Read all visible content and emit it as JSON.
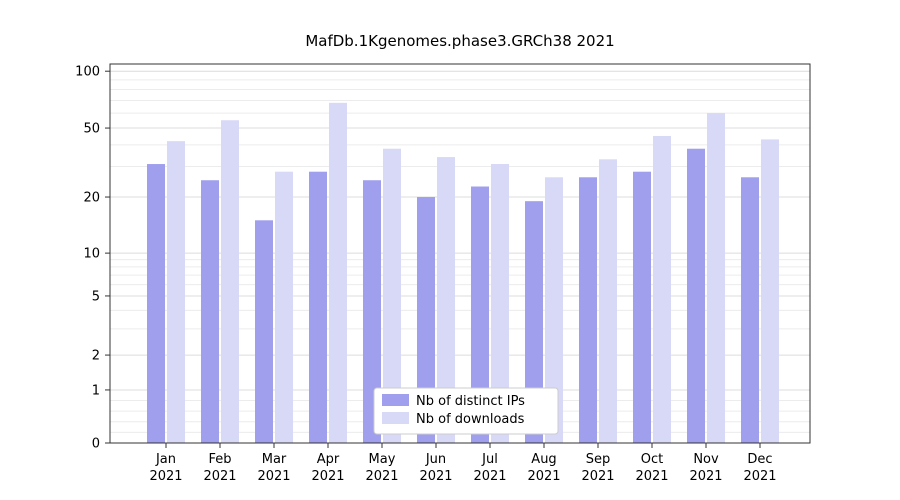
{
  "chart_data": {
    "type": "bar",
    "title": "MafDb.1Kgenomes.phase3.GRCh38 2021",
    "categories": [
      "Jan",
      "Feb",
      "Mar",
      "Apr",
      "May",
      "Jun",
      "Jul",
      "Aug",
      "Sep",
      "Oct",
      "Nov",
      "Dec"
    ],
    "category_year": "2021",
    "series": [
      {
        "name": "Nb of distinct IPs",
        "color": "#9f9fed",
        "values": [
          31,
          25,
          15,
          28,
          25,
          20,
          23,
          19,
          26,
          28,
          38,
          26
        ]
      },
      {
        "name": "Nb of downloads",
        "color": "#d8d8f7",
        "values": [
          42,
          55,
          28,
          68,
          38,
          34,
          31,
          26,
          33,
          45,
          60,
          43
        ]
      }
    ],
    "yscale": "symlog",
    "yticks": [
      0,
      1,
      2,
      5,
      10,
      20,
      50,
      100
    ],
    "yticks_minor": [
      0.2,
      0.4,
      0.6,
      0.8,
      3,
      4,
      6,
      7,
      8,
      9,
      30,
      40,
      60,
      70,
      80,
      90
    ],
    "ylim": [
      0,
      112
    ],
    "grid": true,
    "legend": {
      "position": "lower center"
    },
    "colors": {
      "grid_major": "#dcdcdc",
      "grid_minor": "#ececec",
      "axis": "#333333",
      "text": "#000000",
      "legend_border": "#cccccc",
      "legend_bg": "#ffffff"
    }
  }
}
